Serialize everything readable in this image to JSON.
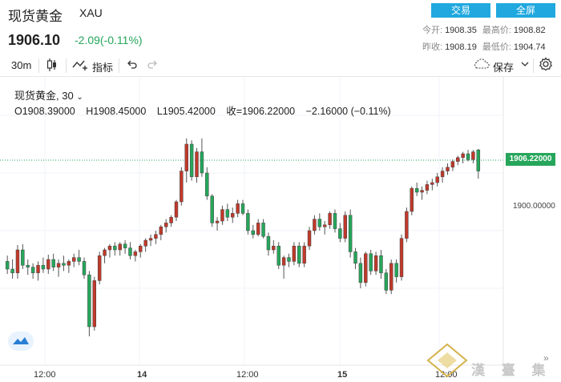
{
  "header": {
    "title": "现货黄金",
    "symbol": "XAU",
    "price": "1906.10",
    "change": "-2.09(-0.11%)",
    "buttons": {
      "trade": "交易",
      "fullscreen": "全屏"
    },
    "stats": {
      "open_label": "今开:",
      "open": "1908.35",
      "high_label": "最高价:",
      "high": "1908.82",
      "prev_label": "昨收:",
      "prev": "1908.19",
      "low_label": "最低价:",
      "low": "1904.74"
    }
  },
  "toolbar": {
    "interval": "30m",
    "indicators": "指标",
    "save": "保存"
  },
  "legend": {
    "name": "现货黄金, 30",
    "open": "O1908.39000",
    "high": "H1908.45000",
    "low": "L1905.42000",
    "close": "收=1906.22000",
    "delta": "−2.16000 (−0.11%)"
  },
  "colors": {
    "up": "#c0392b",
    "down": "#26a65b",
    "accent": "#20a8df"
  },
  "chart_data": {
    "type": "candlestick",
    "current_price_label": "1906.22000",
    "y_tick_labels": [
      "1900.00000"
    ],
    "x_tick_labels": [
      "12:00",
      "14",
      "12:00",
      "15",
      "12:00"
    ],
    "ylim": [
      1886,
      1916
    ],
    "candles": [
      [
        1896.8,
        1897.4,
        1895.5,
        1896.0
      ],
      [
        1896.0,
        1897.0,
        1895.0,
        1895.6
      ],
      [
        1895.6,
        1898.5,
        1895.0,
        1898.0
      ],
      [
        1898.0,
        1898.6,
        1896.0,
        1896.4
      ],
      [
        1896.4,
        1897.0,
        1895.4,
        1896.2
      ],
      [
        1896.2,
        1896.6,
        1895.0,
        1895.6
      ],
      [
        1895.6,
        1896.8,
        1894.8,
        1896.4
      ],
      [
        1896.4,
        1897.2,
        1895.6,
        1896.0
      ],
      [
        1896.0,
        1897.5,
        1895.5,
        1897.0
      ],
      [
        1897.0,
        1897.6,
        1895.8,
        1896.2
      ],
      [
        1896.2,
        1897.0,
        1895.2,
        1896.6
      ],
      [
        1896.6,
        1897.4,
        1895.8,
        1896.4
      ],
      [
        1896.4,
        1897.0,
        1895.6,
        1896.8
      ],
      [
        1896.8,
        1897.6,
        1896.2,
        1897.2
      ],
      [
        1897.2,
        1898.0,
        1896.4,
        1896.8
      ],
      [
        1896.8,
        1897.2,
        1895.0,
        1895.4
      ],
      [
        1895.4,
        1895.8,
        1889.0,
        1890.0
      ],
      [
        1890.0,
        1895.2,
        1889.6,
        1894.8
      ],
      [
        1894.8,
        1897.8,
        1894.4,
        1897.4
      ],
      [
        1897.4,
        1898.2,
        1896.6,
        1898.0
      ],
      [
        1898.0,
        1898.6,
        1897.2,
        1898.4
      ],
      [
        1898.4,
        1898.8,
        1897.4,
        1898.0
      ],
      [
        1898.0,
        1898.8,
        1897.4,
        1898.6
      ],
      [
        1898.6,
        1899.0,
        1897.6,
        1898.2
      ],
      [
        1898.2,
        1898.8,
        1897.0,
        1897.4
      ],
      [
        1897.4,
        1898.0,
        1896.8,
        1897.8
      ],
      [
        1897.8,
        1898.6,
        1897.2,
        1898.4
      ],
      [
        1898.4,
        1899.2,
        1897.8,
        1899.0
      ],
      [
        1899.0,
        1899.6,
        1898.4,
        1899.2
      ],
      [
        1899.2,
        1900.0,
        1898.6,
        1899.6
      ],
      [
        1899.6,
        1900.6,
        1899.0,
        1900.4
      ],
      [
        1900.4,
        1901.2,
        1899.8,
        1900.8
      ],
      [
        1900.8,
        1901.6,
        1900.4,
        1901.4
      ],
      [
        1901.4,
        1903.2,
        1901.0,
        1903.0
      ],
      [
        1903.0,
        1906.6,
        1902.6,
        1906.2
      ],
      [
        1906.2,
        1909.6,
        1905.0,
        1909.0
      ],
      [
        1909.0,
        1909.4,
        1905.2,
        1905.6
      ],
      [
        1905.6,
        1908.6,
        1905.0,
        1908.2
      ],
      [
        1908.2,
        1909.6,
        1905.6,
        1906.0
      ],
      [
        1906.0,
        1906.6,
        1903.2,
        1903.6
      ],
      [
        1903.6,
        1903.8,
        1900.4,
        1900.8
      ],
      [
        1900.8,
        1901.4,
        1900.0,
        1901.0
      ],
      [
        1901.0,
        1902.6,
        1900.6,
        1902.2
      ],
      [
        1902.2,
        1902.8,
        1901.0,
        1901.4
      ],
      [
        1901.4,
        1902.4,
        1900.8,
        1901.8
      ],
      [
        1901.8,
        1903.2,
        1901.4,
        1902.8
      ],
      [
        1902.8,
        1903.2,
        1901.6,
        1901.8
      ],
      [
        1901.8,
        1902.2,
        1899.6,
        1900.0
      ],
      [
        1900.0,
        1900.6,
        1899.2,
        1899.6
      ],
      [
        1899.6,
        1901.2,
        1899.4,
        1900.8
      ],
      [
        1900.8,
        1901.2,
        1899.2,
        1899.4
      ],
      [
        1899.4,
        1899.8,
        1897.4,
        1898.0
      ],
      [
        1898.0,
        1899.0,
        1897.6,
        1898.4
      ],
      [
        1898.4,
        1898.8,
        1896.0,
        1896.4
      ],
      [
        1896.4,
        1897.4,
        1895.0,
        1897.2
      ],
      [
        1897.2,
        1897.6,
        1896.2,
        1896.8
      ],
      [
        1896.8,
        1898.8,
        1896.4,
        1898.4
      ],
      [
        1898.4,
        1898.8,
        1896.2,
        1896.6
      ],
      [
        1896.6,
        1898.8,
        1896.2,
        1898.4
      ],
      [
        1898.4,
        1900.4,
        1898.0,
        1900.0
      ],
      [
        1900.0,
        1901.6,
        1899.6,
        1901.2
      ],
      [
        1901.2,
        1901.8,
        1900.0,
        1900.4
      ],
      [
        1900.4,
        1901.0,
        1899.6,
        1900.6
      ],
      [
        1900.6,
        1902.0,
        1900.2,
        1901.8
      ],
      [
        1901.8,
        1902.2,
        1899.8,
        1900.2
      ],
      [
        1900.2,
        1900.8,
        1898.8,
        1899.2
      ],
      [
        1899.2,
        1902.0,
        1898.8,
        1901.6
      ],
      [
        1901.6,
        1902.2,
        1897.2,
        1897.8
      ],
      [
        1897.8,
        1898.2,
        1896.0,
        1896.6
      ],
      [
        1896.6,
        1897.2,
        1894.0,
        1894.6
      ],
      [
        1894.6,
        1897.8,
        1894.2,
        1897.6
      ],
      [
        1897.6,
        1898.0,
        1895.4,
        1895.8
      ],
      [
        1895.8,
        1897.8,
        1895.4,
        1897.4
      ],
      [
        1897.4,
        1898.0,
        1895.0,
        1895.6
      ],
      [
        1895.6,
        1896.0,
        1893.4,
        1893.8
      ],
      [
        1893.8,
        1897.0,
        1893.4,
        1896.6
      ],
      [
        1896.6,
        1897.0,
        1894.6,
        1895.2
      ],
      [
        1895.2,
        1899.6,
        1894.8,
        1899.2
      ],
      [
        1899.2,
        1902.4,
        1898.8,
        1902.0
      ],
      [
        1902.0,
        1904.6,
        1901.6,
        1904.4
      ],
      [
        1904.4,
        1905.0,
        1903.6,
        1904.0
      ],
      [
        1904.0,
        1904.6,
        1903.2,
        1904.2
      ],
      [
        1904.2,
        1905.2,
        1903.8,
        1904.8
      ],
      [
        1904.8,
        1905.4,
        1904.2,
        1905.0
      ],
      [
        1905.0,
        1906.0,
        1904.6,
        1905.6
      ],
      [
        1905.6,
        1906.6,
        1905.0,
        1906.2
      ],
      [
        1906.2,
        1907.0,
        1905.8,
        1906.6
      ],
      [
        1906.6,
        1907.4,
        1906.2,
        1907.2
      ],
      [
        1907.2,
        1907.8,
        1906.8,
        1907.6
      ],
      [
        1907.6,
        1908.2,
        1907.0,
        1908.0
      ],
      [
        1908.0,
        1908.4,
        1907.2,
        1907.4
      ],
      [
        1907.4,
        1908.4,
        1907.0,
        1908.2
      ],
      [
        1908.4,
        1908.5,
        1905.4,
        1906.2
      ]
    ]
  }
}
